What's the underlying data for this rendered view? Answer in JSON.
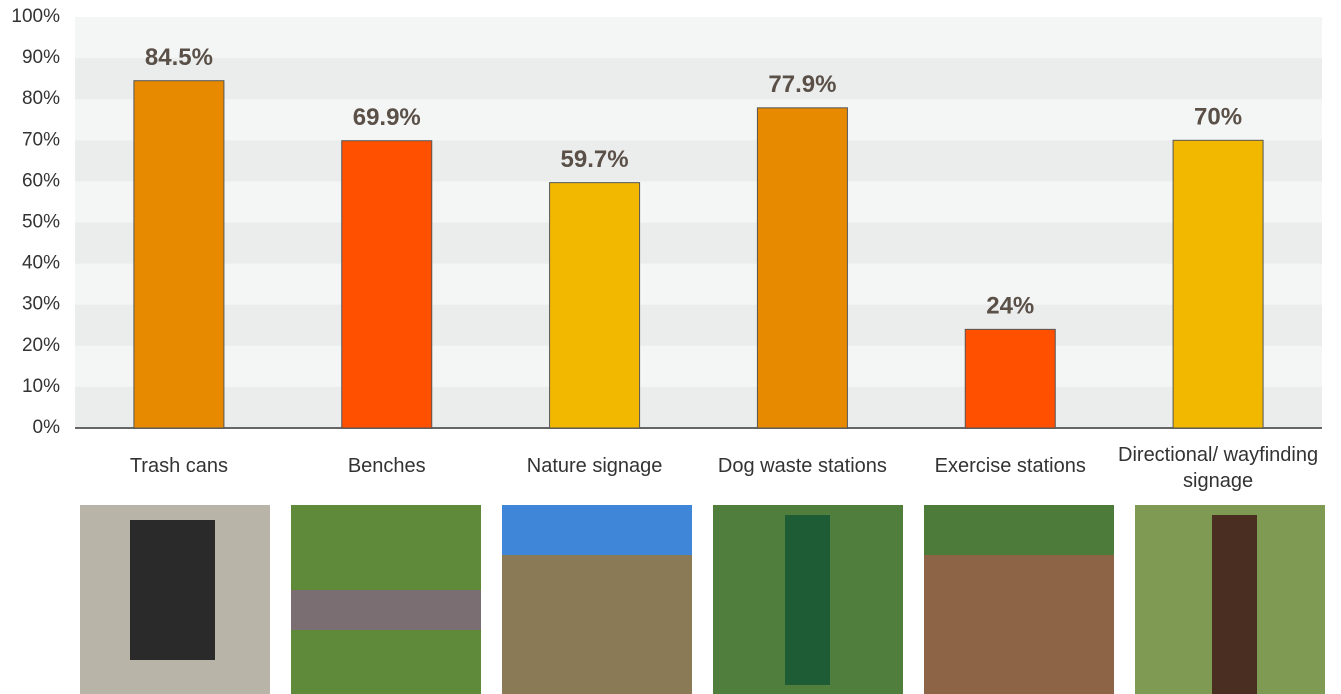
{
  "chart_data": {
    "type": "bar",
    "categories": [
      "Trash cans",
      "Benches",
      "Nature signage",
      "Dog waste stations",
      "Exercise stations",
      "Directional/ wayfinding signage"
    ],
    "values": [
      84.5,
      69.9,
      59.7,
      77.9,
      24,
      70
    ],
    "value_labels": [
      "84.5%",
      "69.9%",
      "59.7%",
      "77.9%",
      "24%",
      "70%"
    ],
    "colors": [
      "#e88a00",
      "#ff5000",
      "#f2b800",
      "#e88a00",
      "#ff5000",
      "#f2b800"
    ],
    "ylim": [
      0,
      100
    ],
    "yticks": [
      {
        "value": 0,
        "label": "0%"
      },
      {
        "value": 10,
        "label": "10%"
      },
      {
        "value": 20,
        "label": "20%"
      },
      {
        "value": 30,
        "label": "30%"
      },
      {
        "value": 40,
        "label": "40%"
      },
      {
        "value": 50,
        "label": "50%"
      },
      {
        "value": 60,
        "label": "60%"
      },
      {
        "value": 70,
        "label": "70%"
      },
      {
        "value": 80,
        "label": "80%"
      },
      {
        "value": 90,
        "label": "90%"
      },
      {
        "value": 100,
        "label": "100%"
      }
    ]
  }
}
